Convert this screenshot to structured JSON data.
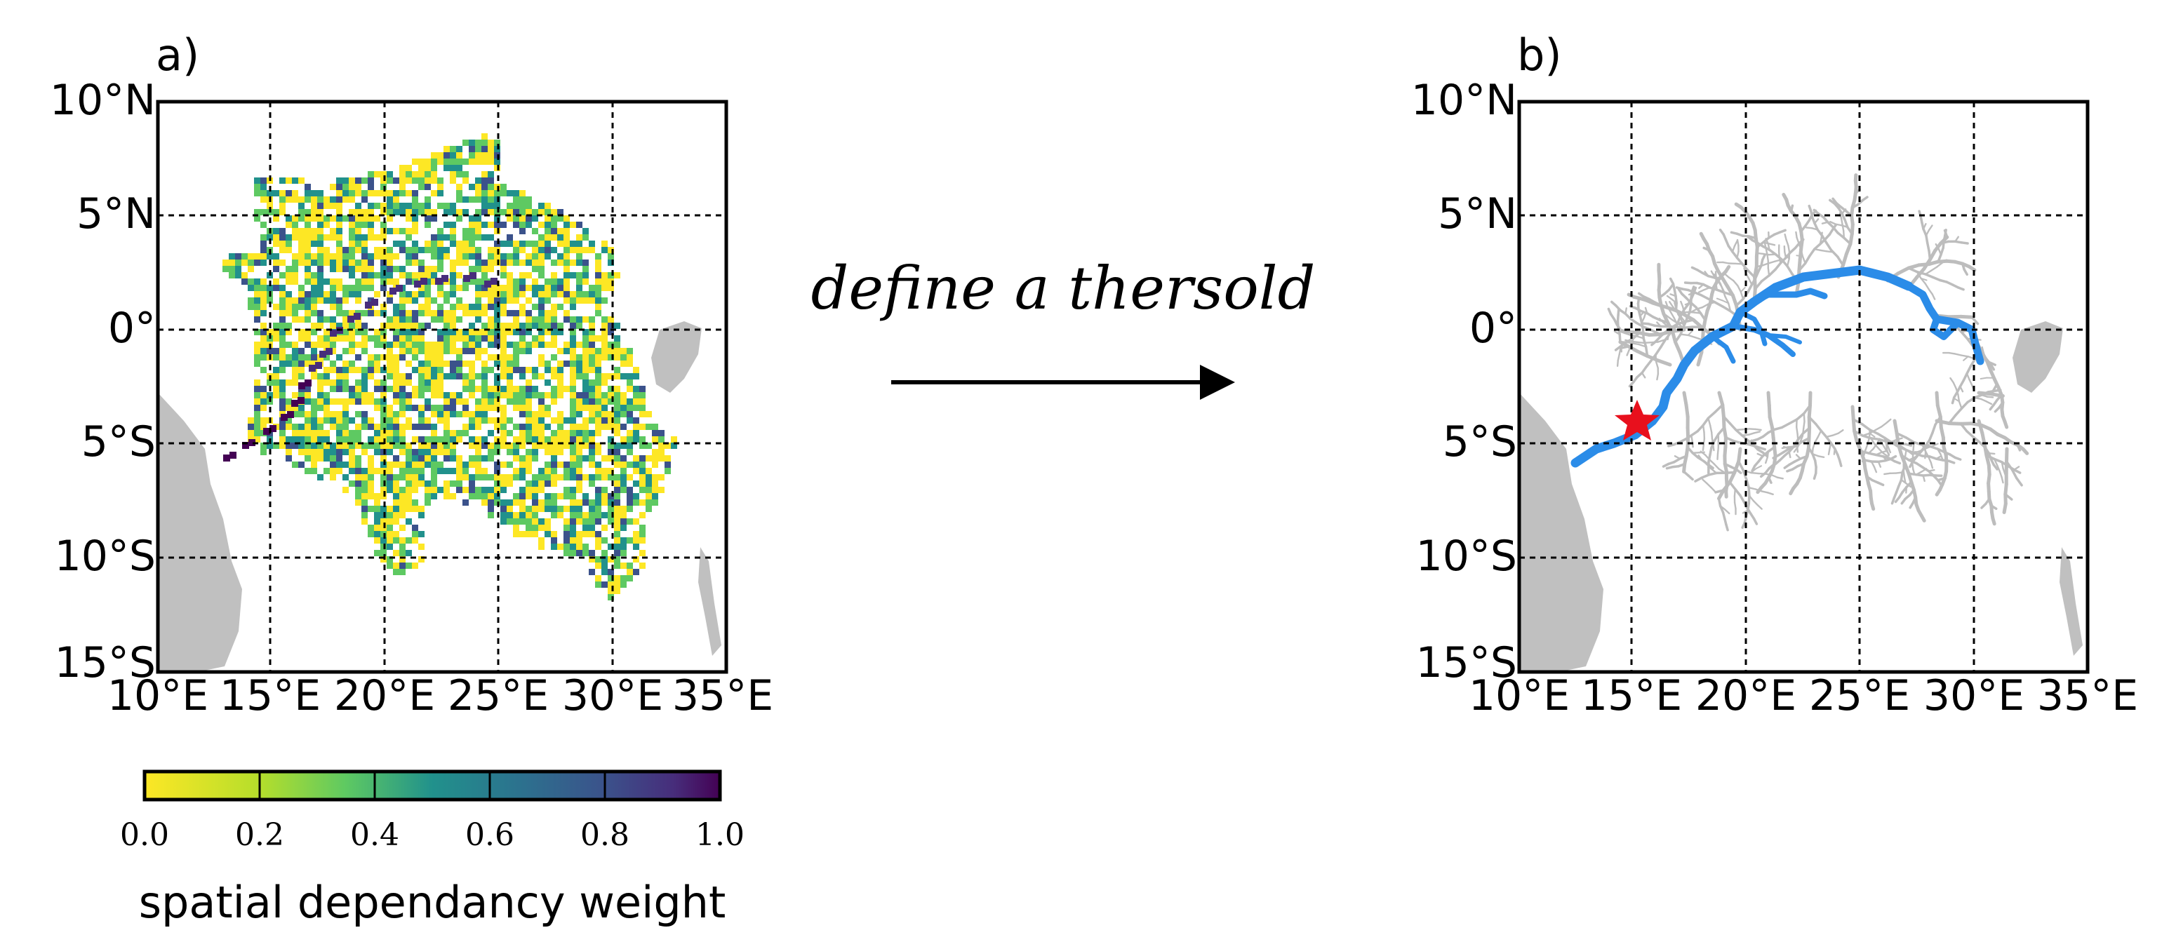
{
  "colors": {
    "land": "#c0c0c0",
    "river_gray": "#bdbdbd",
    "river_blue": "#2b8ce8",
    "star": "#e8101d",
    "grid": "#000000"
  },
  "panels": [
    {
      "label": "a)",
      "lat_ticks": [
        "10°N",
        "5°N",
        "0°",
        "5°S",
        "10°S",
        "15°S"
      ],
      "lon_ticks": [
        "10°E",
        "15°E",
        "20°E",
        "25°E",
        "30°E",
        "35°E"
      ]
    },
    {
      "label": "b)",
      "lat_ticks": [
        "10°N",
        "5°N",
        "0°",
        "5°S",
        "10°S",
        "15°S"
      ],
      "lon_ticks": [
        "10°E",
        "15°E",
        "20°E",
        "25°E",
        "30°E",
        "35°E"
      ]
    }
  ],
  "arrow_text": "define a thersold",
  "colorbar": {
    "ticks": [
      "0.0",
      "0.2",
      "0.4",
      "0.6",
      "0.8",
      "1.0"
    ],
    "label": "spatial dependancy weight",
    "colors": [
      "#fde725",
      "#5ec962",
      "#21918c",
      "#3b528b",
      "#440154"
    ]
  },
  "outlet_marker": {
    "lon": 15.3,
    "lat": -4.3,
    "shape": "star-icon"
  }
}
